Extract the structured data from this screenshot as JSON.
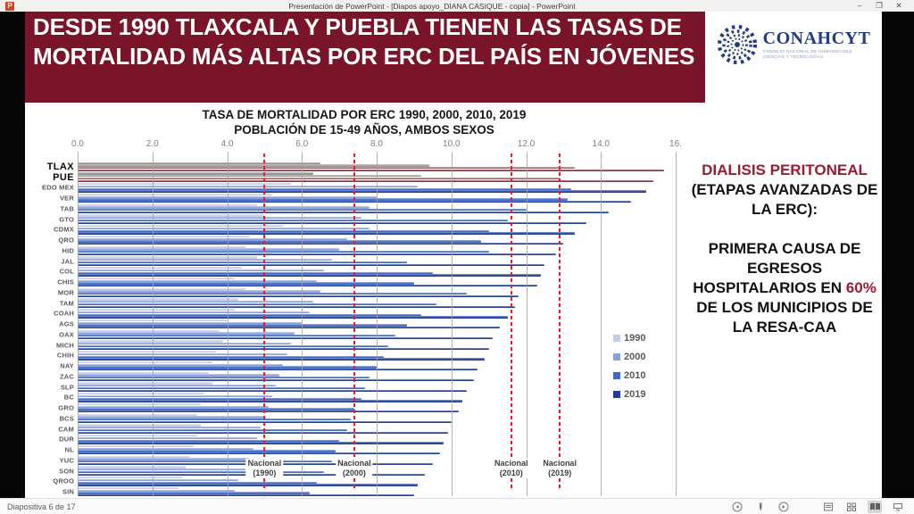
{
  "window": {
    "title": "Presentación de PowerPoint - [Diapos apoyo_DIANA CASIQUE - copia] - PowerPoint",
    "app_icon": "P",
    "controls": {
      "minimize": "–",
      "maximize": "❐",
      "close": "✕"
    }
  },
  "slide": {
    "header_title": "DESDE 1990 TLAXCALA Y PUEBLA TIENEN LAS TASAS DE MORTALIDAD MÁS ALTAS POR ERC DEL PAÍS EN JÓVENES",
    "header_bg": "#7a1428",
    "logo": {
      "name": "CONAHCYT",
      "subtitle": "CONSEJO NACIONAL DE HUMANIDADES CIENCIAS Y TECNOLOGÍAS",
      "color": "#243c82"
    },
    "side_text": {
      "heading": "DIALISIS PERITONEAL",
      "subheading": "(ETAPAS AVANZADAS DE LA ERC):",
      "body_pre": "PRIMERA CAUSA DE EGRESOS HOSPITALARIOS EN ",
      "highlight": "60%",
      "body_post": " DE LOS MUNICIPIOS DE LA RESA-CAA",
      "accent_color": "#9e1b32"
    }
  },
  "chart_data": {
    "type": "bar",
    "orientation": "horizontal",
    "title": "TASA DE MORTALIDAD POR ERC 1990, 2000, 2010, 2019",
    "subtitle": "POBLACIÓN DE 15-49 AÑOS, AMBOS SEXOS",
    "xlim": [
      0,
      16
    ],
    "x_ticks": [
      "0.0",
      "2.0",
      "4.0",
      "6.0",
      "8.0",
      "10.0",
      "12.0",
      "14.0",
      "16."
    ],
    "grid": true,
    "legend_position": "right-inside",
    "categories": [
      "TLAX",
      "PUE",
      "EDO MEX",
      "VER",
      "TAB",
      "GTO",
      "CDMX",
      "QRO",
      "HID",
      "JAL",
      "COL",
      "CHIS",
      "MOR",
      "TAM",
      "COAH",
      "AGS",
      "OAX",
      "MICH",
      "CHIH",
      "NAY",
      "ZAC",
      "SLP",
      "BC",
      "GRO",
      "BCS",
      "CAM",
      "DUR",
      "NL",
      "YUC",
      "SON",
      "QROO",
      "SIN"
    ],
    "series": [
      {
        "name": "1990",
        "color": "#c6cbe9",
        "values": [
          6.5,
          6.3,
          5.7,
          5.2,
          4.8,
          5.0,
          5.5,
          4.6,
          4.5,
          4.8,
          4.4,
          4.2,
          4.5,
          4.3,
          4.2,
          4.0,
          3.8,
          3.9,
          3.7,
          3.6,
          3.5,
          3.6,
          3.4,
          3.3,
          3.2,
          3.3,
          3.2,
          3.1,
          3.0,
          2.9,
          2.8,
          2.7
        ]
      },
      {
        "name": "2000",
        "color": "#8ba0d9",
        "values": [
          9.4,
          9.2,
          9.1,
          8.0,
          7.8,
          7.6,
          7.8,
          7.2,
          7.0,
          6.8,
          6.6,
          6.4,
          6.5,
          6.3,
          6.2,
          6.0,
          5.8,
          5.7,
          5.6,
          5.5,
          5.4,
          5.3,
          5.2,
          5.1,
          5.0,
          4.9,
          4.8,
          4.7,
          4.6,
          4.5,
          4.3,
          4.2
        ]
      },
      {
        "name": "2010",
        "color": "#3f68c6",
        "values": [
          13.3,
          12.9,
          13.2,
          13.1,
          12.0,
          11.5,
          11.0,
          10.8,
          11.0,
          8.8,
          9.5,
          9.0,
          10.4,
          9.6,
          9.2,
          8.8,
          8.5,
          8.3,
          8.2,
          8.0,
          7.8,
          7.7,
          7.6,
          7.4,
          7.3,
          7.2,
          7.0,
          6.9,
          6.8,
          6.6,
          6.4,
          6.2
        ]
      },
      {
        "name": "2019",
        "color": "#1e4096",
        "values": [
          15.7,
          15.4,
          15.2,
          14.8,
          14.2,
          13.6,
          13.3,
          13.0,
          12.8,
          12.5,
          12.4,
          12.3,
          11.8,
          11.7,
          11.5,
          11.3,
          11.1,
          11.0,
          10.9,
          10.7,
          10.6,
          10.4,
          10.3,
          10.2,
          10.0,
          9.9,
          9.8,
          9.7,
          9.5,
          9.3,
          9.1,
          9.0
        ]
      }
    ],
    "highlight_categories": [
      "TLAX",
      "PUE"
    ],
    "highlight_palette": {
      "1990": "#948e8e",
      "2000": "#a39898",
      "2010": "#9c6a6e",
      "2019": "#8d2e3b"
    },
    "reference_lines": [
      {
        "label": "Nacional",
        "sublabel": "(1990)",
        "value": 5.0
      },
      {
        "label": "Nacional",
        "sublabel": "(2000)",
        "value": 7.4
      },
      {
        "label": "Nacional",
        "sublabel": "(2010)",
        "value": 11.6
      },
      {
        "label": "Nacional",
        "sublabel": "(2019)",
        "value": 12.9
      }
    ],
    "reference_color": "#f0182a"
  },
  "statusbar": {
    "slide_indicator": "Diapositiva 6 de 17"
  }
}
